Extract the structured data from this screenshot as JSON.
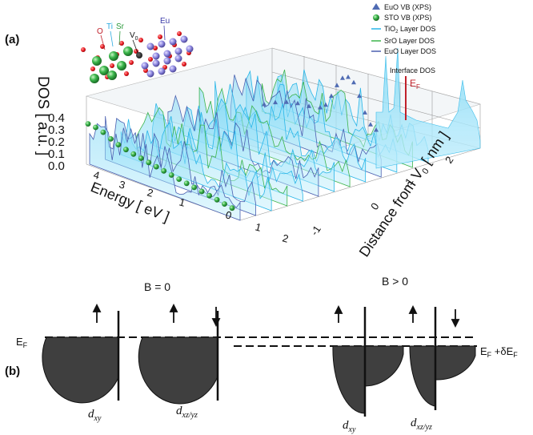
{
  "figure": {
    "panel_a": "(a)",
    "panel_b": "(b)"
  },
  "legend": {
    "items": [
      {
        "label": "EuO VB (XPS)",
        "color": "#4f6bb3",
        "marker": "triangle-marker"
      },
      {
        "label": "STO VB (XPS)",
        "color": "#2e9b3e",
        "marker": "sphere-marker"
      },
      {
        "label": "TiO",
        "sub": "2",
        "label_tail": " Layer DOS",
        "color": "#29b6e8",
        "marker": "line-marker"
      },
      {
        "label": "SrO Layer DOS",
        "color": "#3cb44b",
        "marker": "line-marker"
      },
      {
        "label": "EuO Layer DOS",
        "color": "#4a5fb0",
        "marker": "line-marker"
      }
    ],
    "interface": "Interface DOS",
    "ef": "E",
    "ef_sub": "F"
  },
  "atoms": {
    "o": "O",
    "ti": "Ti",
    "sr": "Sr",
    "eu": "Eu",
    "vo": "V",
    "vo_sub": "0"
  },
  "chart_data": {
    "type": "3d-waterfall",
    "ylabel": "DOS [ a.u. ]",
    "xlabel": "Energy [ eV ]",
    "zlabel": "Distance from V",
    "zlabel_sub": "0",
    "zlabel_unit": " [ nm ]",
    "dos_ticks": [
      "0.4",
      "0.3",
      "0.2",
      "0.1",
      "0.0"
    ],
    "energy_ticks": [
      "4",
      "3",
      "2",
      "1",
      "0",
      "1",
      "2"
    ],
    "distance_ticks": [
      "2",
      "1",
      "0",
      "-1"
    ],
    "ylim": [
      0,
      0.4
    ],
    "xlim": [
      -4,
      2
    ],
    "zlim": [
      -1,
      2
    ],
    "sto_vb_xps": [
      [
        -4.4,
        0.19
      ],
      [
        -4.2,
        0.2
      ],
      [
        -4.0,
        0.18
      ],
      [
        -3.8,
        0.12
      ],
      [
        -3.6,
        0.08
      ],
      [
        -3.4,
        0.06
      ],
      [
        -3.2,
        0.05
      ],
      [
        -3.0,
        0.045
      ],
      [
        -2.8,
        0.04
      ],
      [
        -2.6,
        0.035
      ],
      [
        -2.4,
        0.03
      ],
      [
        -2.2,
        0.028
      ],
      [
        -2.0,
        0.025
      ],
      [
        -1.8,
        0.022
      ],
      [
        -1.6,
        0.02
      ],
      [
        -1.4,
        0.018
      ],
      [
        -1.2,
        0.015
      ],
      [
        -1.0,
        0.012
      ],
      [
        -0.8,
        0.008
      ],
      [
        -0.6,
        0.005
      ]
    ],
    "euo_vb_xps": [
      [
        -4.0,
        0.1
      ],
      [
        -3.6,
        0.12
      ],
      [
        -3.2,
        0.13
      ],
      [
        -2.8,
        0.13
      ],
      [
        -2.4,
        0.12
      ],
      [
        -2.0,
        0.12
      ],
      [
        -1.8,
        0.14
      ],
      [
        -1.6,
        0.2
      ],
      [
        -1.4,
        0.27
      ],
      [
        -1.2,
        0.32
      ],
      [
        -1.0,
        0.33
      ],
      [
        -0.8,
        0.3
      ],
      [
        -0.6,
        0.22
      ],
      [
        -0.4,
        0.12
      ],
      [
        -0.2,
        0.05
      ],
      [
        0.0,
        0.02
      ]
    ]
  },
  "panel_b": {
    "b_zero": "B = 0",
    "b_pos": "B > 0",
    "ef": "E",
    "ef_sub": "F",
    "ef_shift": " +δE",
    "ef_shift_sub": "F",
    "orbitals": [
      {
        "base": "d",
        "sub": "xy"
      },
      {
        "base": "d",
        "sub": "xz/yz"
      },
      {
        "base": "d",
        "sub": "xy"
      },
      {
        "base": "d",
        "sub": "xz/yz"
      }
    ]
  }
}
